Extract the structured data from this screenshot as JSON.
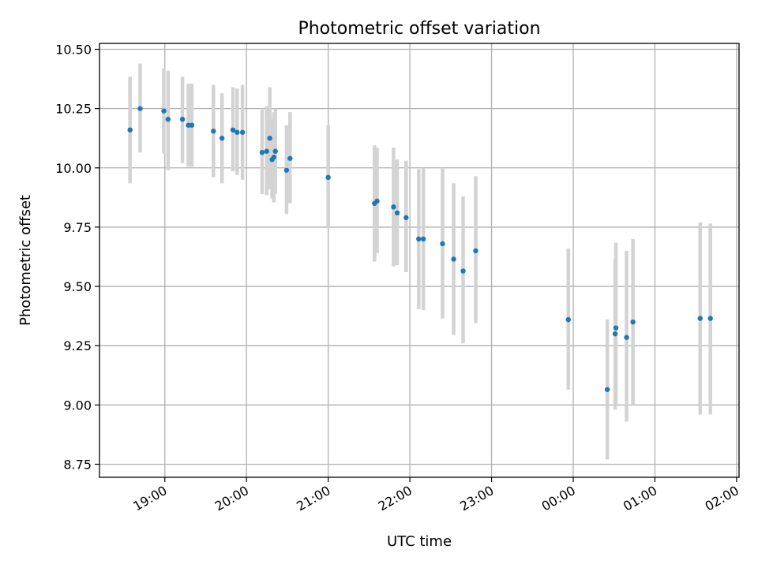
{
  "chart_data": {
    "type": "scatter",
    "title": "Photometric offset variation",
    "xlabel": "UTC time",
    "ylabel": "Photometric offset",
    "x_unit": "hours UTC (values >= 24 are after midnight)",
    "xlim": [
      18.2,
      26.03
    ],
    "ylim": [
      8.695,
      10.525
    ],
    "x_ticks": [
      {
        "value": 19,
        "label": "19:00"
      },
      {
        "value": 20,
        "label": "20:00"
      },
      {
        "value": 21,
        "label": "21:00"
      },
      {
        "value": 22,
        "label": "22:00"
      },
      {
        "value": 23,
        "label": "23:00"
      },
      {
        "value": 24,
        "label": "00:00"
      },
      {
        "value": 25,
        "label": "01:00"
      },
      {
        "value": 26,
        "label": "02:00"
      }
    ],
    "y_ticks": [
      {
        "value": 8.75,
        "label": "8.75"
      },
      {
        "value": 9.0,
        "label": "9.00"
      },
      {
        "value": 9.25,
        "label": "9.25"
      },
      {
        "value": 9.5,
        "label": "9.50"
      },
      {
        "value": 9.75,
        "label": "9.75"
      },
      {
        "value": 10.0,
        "label": "10.00"
      },
      {
        "value": 10.25,
        "label": "10.25"
      },
      {
        "value": 10.5,
        "label": "10.50"
      }
    ],
    "grid": true,
    "point_color": "#1f77b4",
    "errorbar_color": "#d3d3d3",
    "points": [
      {
        "time": "18:35",
        "x": 18.574,
        "y": 10.16,
        "ylow": 9.935,
        "yhigh": 10.385
      },
      {
        "time": "18:42",
        "x": 18.698,
        "y": 10.25,
        "ylow": 10.065,
        "yhigh": 10.44
      },
      {
        "time": "18:59",
        "x": 18.988,
        "y": 10.24,
        "ylow": 10.06,
        "yhigh": 10.42
      },
      {
        "time": "19:02",
        "x": 19.04,
        "y": 10.205,
        "ylow": 9.99,
        "yhigh": 10.41
      },
      {
        "time": "19:13",
        "x": 19.216,
        "y": 10.205,
        "ylow": 10.02,
        "yhigh": 10.385
      },
      {
        "time": "19:17",
        "x": 19.288,
        "y": 10.18,
        "ylow": 10.005,
        "yhigh": 10.355
      },
      {
        "time": "19:20",
        "x": 19.33,
        "y": 10.18,
        "ylow": 10.005,
        "yhigh": 10.355
      },
      {
        "time": "19:35",
        "x": 19.595,
        "y": 10.155,
        "ylow": 9.96,
        "yhigh": 10.35
      },
      {
        "time": "19:42",
        "x": 19.7,
        "y": 10.125,
        "ylow": 9.935,
        "yhigh": 10.315
      },
      {
        "time": "19:50",
        "x": 19.834,
        "y": 10.16,
        "ylow": 9.985,
        "yhigh": 10.34
      },
      {
        "time": "19:53",
        "x": 19.885,
        "y": 10.15,
        "ylow": 9.97,
        "yhigh": 10.335
      },
      {
        "time": "19:57",
        "x": 19.951,
        "y": 10.15,
        "ylow": 9.95,
        "yhigh": 10.35
      },
      {
        "time": "20:11",
        "x": 20.191,
        "y": 10.065,
        "ylow": 9.89,
        "yhigh": 10.245
      },
      {
        "time": "20:15",
        "x": 20.247,
        "y": 10.07,
        "ylow": 9.885,
        "yhigh": 10.26
      },
      {
        "time": "20:17",
        "x": 20.285,
        "y": 10.125,
        "ylow": 9.91,
        "yhigh": 10.34
      },
      {
        "time": "20:19",
        "x": 20.313,
        "y": 10.035,
        "ylow": 9.87,
        "yhigh": 10.205
      },
      {
        "time": "20:20",
        "x": 20.335,
        "y": 10.045,
        "ylow": 9.855,
        "yhigh": 10.235
      },
      {
        "time": "20:21",
        "x": 20.353,
        "y": 10.07,
        "ylow": 9.89,
        "yhigh": 10.25
      },
      {
        "time": "20:29",
        "x": 20.49,
        "y": 9.99,
        "ylow": 9.805,
        "yhigh": 10.18
      },
      {
        "time": "20:32",
        "x": 20.533,
        "y": 10.04,
        "ylow": 9.85,
        "yhigh": 10.235
      },
      {
        "time": "21:00",
        "x": 21.0,
        "y": 9.96,
        "ylow": 9.745,
        "yhigh": 10.18
      },
      {
        "time": "21:34",
        "x": 21.567,
        "y": 9.85,
        "ylow": 9.605,
        "yhigh": 10.095
      },
      {
        "time": "21:36",
        "x": 21.598,
        "y": 9.86,
        "ylow": 9.64,
        "yhigh": 10.085
      },
      {
        "time": "21:48",
        "x": 21.8,
        "y": 9.835,
        "ylow": 9.585,
        "yhigh": 10.085
      },
      {
        "time": "21:51",
        "x": 21.845,
        "y": 9.81,
        "ylow": 9.59,
        "yhigh": 10.035
      },
      {
        "time": "21:57",
        "x": 21.954,
        "y": 9.79,
        "ylow": 9.56,
        "yhigh": 10.03
      },
      {
        "time": "22:06",
        "x": 22.108,
        "y": 9.7,
        "ylow": 9.405,
        "yhigh": 9.995
      },
      {
        "time": "22:10",
        "x": 22.165,
        "y": 9.7,
        "ylow": 9.4,
        "yhigh": 10.0
      },
      {
        "time": "22:24",
        "x": 22.4,
        "y": 9.68,
        "ylow": 9.365,
        "yhigh": 10.0
      },
      {
        "time": "22:32",
        "x": 22.536,
        "y": 9.615,
        "ylow": 9.295,
        "yhigh": 9.935
      },
      {
        "time": "22:39",
        "x": 22.652,
        "y": 9.565,
        "ylow": 9.26,
        "yhigh": 9.88
      },
      {
        "time": "22:48",
        "x": 22.806,
        "y": 9.65,
        "ylow": 9.345,
        "yhigh": 9.965
      },
      {
        "time": "23:56",
        "x": 23.94,
        "y": 9.36,
        "ylow": 9.065,
        "yhigh": 9.66
      },
      {
        "time": "00:25",
        "x": 24.417,
        "y": 9.065,
        "ylow": 8.77,
        "yhigh": 9.36
      },
      {
        "time": "00:31",
        "x": 24.513,
        "y": 9.3,
        "ylow": 8.98,
        "yhigh": 9.615
      },
      {
        "time": "00:31",
        "x": 24.522,
        "y": 9.325,
        "ylow": 9.005,
        "yhigh": 9.685
      },
      {
        "time": "00:39",
        "x": 24.653,
        "y": 9.285,
        "ylow": 8.93,
        "yhigh": 9.65
      },
      {
        "time": "00:44",
        "x": 24.731,
        "y": 9.35,
        "ylow": 9.0,
        "yhigh": 9.7
      },
      {
        "time": "01:33",
        "x": 25.554,
        "y": 9.365,
        "ylow": 8.96,
        "yhigh": 9.77
      },
      {
        "time": "01:41",
        "x": 25.679,
        "y": 9.365,
        "ylow": 8.96,
        "yhigh": 9.765
      }
    ]
  }
}
